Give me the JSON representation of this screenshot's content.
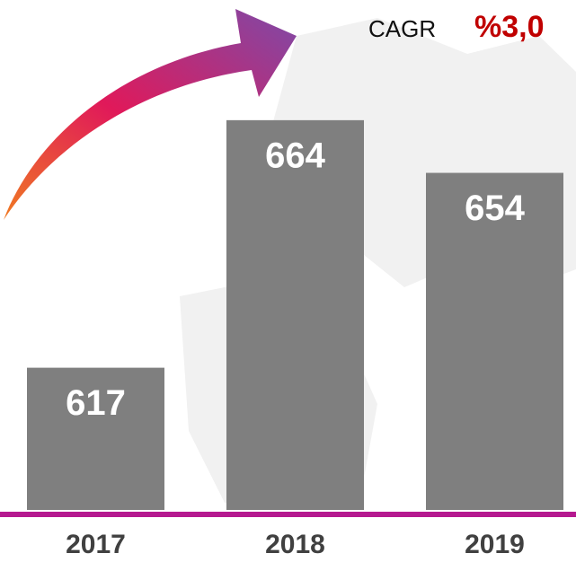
{
  "chart_data": {
    "type": "bar",
    "categories": [
      "2017",
      "2018",
      "2019"
    ],
    "values": [
      617,
      664,
      654
    ],
    "color": "#7f7f7f",
    "ylim": [
      590,
      680
    ],
    "annotations": {
      "cagr_label": "CAGR",
      "cagr_value": "%3,0"
    }
  }
}
